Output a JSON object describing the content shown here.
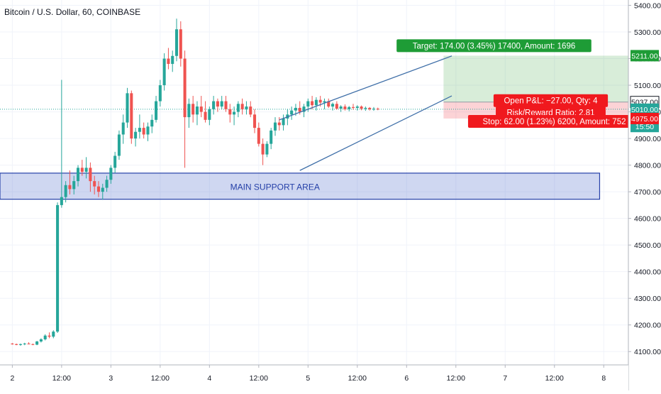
{
  "header": {
    "symbol_title": "Bitcoin / U.S. Dollar, 60, COINBASE"
  },
  "chart_data": {
    "type": "candlestick",
    "title": "Bitcoin / U.S. Dollar, 60, COINBASE",
    "y_axis": {
      "position": "right",
      "ylim": [
        4050,
        5420
      ],
      "ticks": [
        4100,
        4200,
        4300,
        4400,
        4500,
        4600,
        4700,
        4800,
        4900,
        5000,
        5100,
        5200,
        5300,
        5400
      ],
      "tick_labels": [
        "4100.00",
        "4200.00",
        "4300.00",
        "4400.00",
        "4500.00",
        "4600.00",
        "4700.00",
        "4800.00",
        "4900.00",
        "5000.00",
        "5100.00",
        "5200.00",
        "5300.00",
        "5400.00"
      ]
    },
    "x_axis": {
      "labels": [
        "2",
        "12:00",
        "3",
        "12:00",
        "4",
        "12:00",
        "5",
        "12:00",
        "6",
        "12:00",
        "7",
        "12:00",
        "8"
      ],
      "label_index": [
        0,
        12,
        24,
        36,
        48,
        60,
        72,
        84,
        96,
        108,
        120,
        132,
        144
      ],
      "index_range": [
        -3,
        150
      ]
    },
    "colors": {
      "up": "#26a69a",
      "down": "#ef5350",
      "channel": "#3f6fa8",
      "target": "#1e9c36",
      "stop": "#f0191e",
      "price_line": "#26a69a"
    },
    "candles": [
      [
        4130,
        4132,
        4126,
        4128
      ],
      [
        4128,
        4130,
        4124,
        4125
      ],
      [
        4125,
        4130,
        4122,
        4128
      ],
      [
        4128,
        4133,
        4124,
        4130
      ],
      [
        4130,
        4135,
        4127,
        4128
      ],
      [
        4128,
        4130,
        4124,
        4126
      ],
      [
        4126,
        4140,
        4124,
        4138
      ],
      [
        4138,
        4150,
        4134,
        4146
      ],
      [
        4146,
        4165,
        4142,
        4160
      ],
      [
        4160,
        4172,
        4150,
        4156
      ],
      [
        4156,
        4180,
        4150,
        4175
      ],
      [
        4175,
        4660,
        4170,
        4650
      ],
      [
        4650,
        5120,
        4640,
        4680
      ],
      [
        4680,
        4740,
        4660,
        4725
      ],
      [
        4725,
        4780,
        4690,
        4710
      ],
      [
        4710,
        4760,
        4690,
        4740
      ],
      [
        4740,
        4800,
        4720,
        4790
      ],
      [
        4790,
        4820,
        4760,
        4775
      ],
      [
        4775,
        4830,
        4750,
        4790
      ],
      [
        4790,
        4810,
        4700,
        4740
      ],
      [
        4740,
        4760,
        4690,
        4720
      ],
      [
        4720,
        4740,
        4680,
        4700
      ],
      [
        4700,
        4730,
        4670,
        4715
      ],
      [
        4715,
        4760,
        4700,
        4745
      ],
      [
        4745,
        4800,
        4730,
        4790
      ],
      [
        4790,
        4850,
        4770,
        4835
      ],
      [
        4835,
        4930,
        4820,
        4915
      ],
      [
        4915,
        4990,
        4880,
        4960
      ],
      [
        4960,
        5090,
        4940,
        5070
      ],
      [
        5070,
        5080,
        4880,
        4900
      ],
      [
        4900,
        4940,
        4870,
        4925
      ],
      [
        4925,
        4990,
        4900,
        4940
      ],
      [
        4940,
        4960,
        4900,
        4915
      ],
      [
        4915,
        4960,
        4890,
        4945
      ],
      [
        4945,
        4990,
        4920,
        4970
      ],
      [
        4970,
        5060,
        4960,
        5040
      ],
      [
        5040,
        5120,
        5020,
        5100
      ],
      [
        5100,
        5220,
        5080,
        5200
      ],
      [
        5200,
        5240,
        5160,
        5180
      ],
      [
        5180,
        5230,
        5150,
        5210
      ],
      [
        5210,
        5350,
        5190,
        5310
      ],
      [
        5310,
        5340,
        5170,
        5200
      ],
      [
        5200,
        5230,
        4790,
        4980
      ],
      [
        4980,
        5050,
        4940,
        5030
      ],
      [
        5030,
        5060,
        4960,
        4990
      ],
      [
        4990,
        5040,
        4950,
        5020
      ],
      [
        5020,
        5060,
        4980,
        5000
      ],
      [
        5000,
        5040,
        4960,
        4970
      ],
      [
        4970,
        5020,
        4950,
        5010
      ],
      [
        5010,
        5060,
        4990,
        5040
      ],
      [
        5040,
        5050,
        5000,
        5020
      ],
      [
        5020,
        5060,
        5010,
        5040
      ],
      [
        5040,
        5060,
        5000,
        5010
      ],
      [
        5010,
        5030,
        4960,
        4990
      ],
      [
        4990,
        5020,
        4950,
        5000
      ],
      [
        5000,
        5040,
        4980,
        5030
      ],
      [
        5030,
        5050,
        4990,
        5010
      ],
      [
        5010,
        5040,
        4990,
        5020
      ],
      [
        5020,
        5040,
        4980,
        4990
      ],
      [
        4990,
        5010,
        4920,
        4940
      ],
      [
        4940,
        4960,
        4870,
        4880
      ],
      [
        4880,
        4900,
        4800,
        4840
      ],
      [
        4840,
        4890,
        4830,
        4880
      ],
      [
        4880,
        4940,
        4860,
        4930
      ],
      [
        4930,
        4980,
        4910,
        4960
      ],
      [
        4960,
        4980,
        4930,
        4950
      ],
      [
        4950,
        4990,
        4930,
        4975
      ],
      [
        4975,
        5010,
        4950,
        4990
      ],
      [
        4990,
        5020,
        4970,
        5005
      ],
      [
        5005,
        5030,
        4985,
        5015
      ],
      [
        5015,
        5040,
        4990,
        5000
      ],
      [
        5000,
        5030,
        4980,
        5020
      ],
      [
        5020,
        5050,
        5000,
        5040
      ],
      [
        5040,
        5060,
        5010,
        5025
      ],
      [
        5025,
        5055,
        5005,
        5045
      ],
      [
        5045,
        5060,
        5020,
        5035
      ],
      [
        5035,
        5050,
        5010,
        5040
      ],
      [
        5040,
        5050,
        5015,
        5020
      ],
      [
        5020,
        5035,
        5005,
        5030
      ],
      [
        5030,
        5040,
        5008,
        5012
      ],
      [
        5012,
        5025,
        5000,
        5020
      ],
      [
        5020,
        5028,
        5005,
        5010
      ],
      [
        5010,
        5022,
        5002,
        5018
      ],
      [
        5018,
        5030,
        5008,
        5015
      ],
      [
        5015,
        5025,
        5005,
        5020
      ],
      [
        5020,
        5024,
        5006,
        5012
      ],
      [
        5012,
        5020,
        5004,
        5015
      ],
      [
        5015,
        5018,
        5005,
        5010
      ],
      [
        5010,
        5018,
        5004,
        5012
      ],
      [
        5012,
        5016,
        5006,
        5010
      ]
    ],
    "channel_lines": [
      {
        "name": "upper",
        "points": [
          [
            65,
            4970
          ],
          [
            107,
            5210
          ]
        ]
      },
      {
        "name": "lower",
        "points": [
          [
            70,
            4780
          ],
          [
            107,
            5060
          ]
        ]
      }
    ],
    "support_zone": {
      "label": "MAIN SUPPORT AREA",
      "from_index": -3,
      "to_index": 143,
      "y_low": 4672,
      "y_high": 4770
    },
    "position": {
      "from_index": 105,
      "to_index": 152,
      "entry": 5037,
      "target": 5211,
      "stop": 4975,
      "current": 5010,
      "target_label": "Target: 174.00 (3.45%) 17400, Amount: 1696",
      "stop_label": "Stop: 62.00 (1.23%) 6200, Amount: 752",
      "pnl_label": "Open P&L: −27.00, Qty: 4",
      "rr_label": "Risk/Reward Ratio: 2.81"
    },
    "price_badges": [
      {
        "value": 5211,
        "text": "5211.00",
        "bg": "#1e9c36",
        "fg": "#ffffff"
      },
      {
        "value": 5037,
        "text": "5037.00",
        "bg": "#ffffff",
        "fg": "#131722"
      },
      {
        "value": 5010,
        "text": "5010.00",
        "bg": "#26a69a",
        "fg": "#ffffff"
      },
      {
        "value": 4945,
        "text": "15:50",
        "bg": "#26a69a",
        "fg": "#ffffff"
      },
      {
        "value": 4975,
        "text": "4975.00",
        "bg": "#f0191e",
        "fg": "#ffffff"
      }
    ],
    "grid": true
  }
}
